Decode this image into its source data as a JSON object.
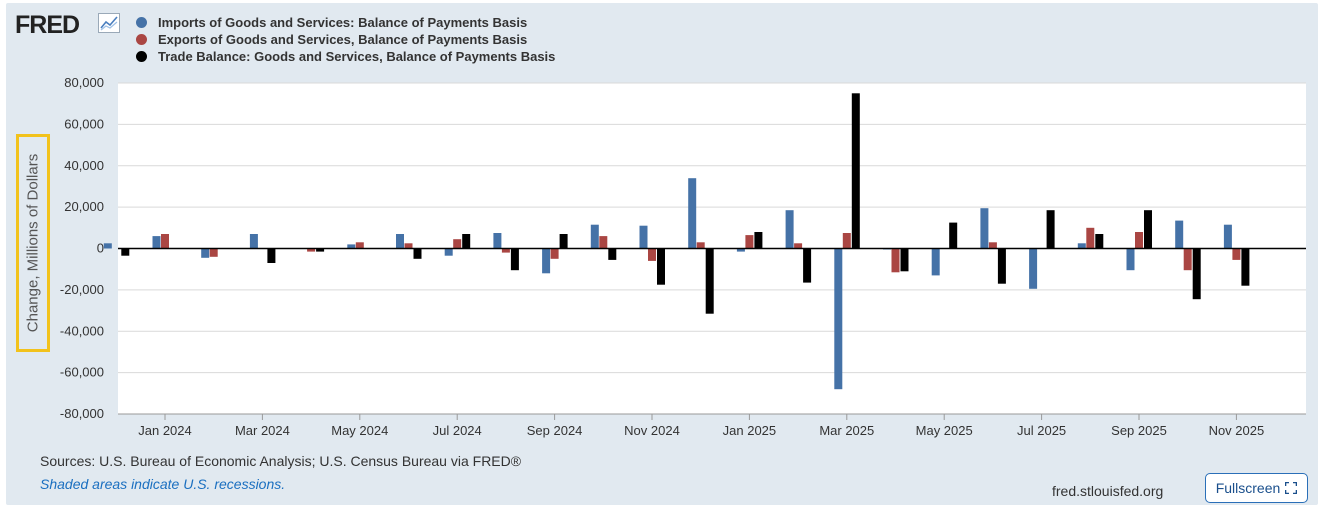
{
  "header": {
    "logo_text": "FRED",
    "logo_icon": "line-chart-icon"
  },
  "legend": [
    {
      "label": "Imports of Goods and Services: Balance of Payments Basis",
      "color": "#4572a7"
    },
    {
      "label": "Exports of Goods and Services, Balance of Payments Basis",
      "color": "#aa4643"
    },
    {
      "label": "Trade Balance: Goods and Services, Balance of Payments Basis",
      "color": "#000000"
    }
  ],
  "footer": {
    "sources": "Sources: U.S. Bureau of Economic Analysis; U.S. Census Bureau via FRED®",
    "shaded_note": "Shaded areas indicate U.S. recessions.",
    "site": "fred.stlouisfed.org",
    "fullscreen_label": "Fullscreen",
    "fullscreen_icon": "expand-icon"
  },
  "chart_data": {
    "type": "bar",
    "ylabel": "Change, Millions of Dollars",
    "ylim": [
      -80000,
      80000
    ],
    "yticks": [
      80000,
      60000,
      40000,
      20000,
      0,
      -20000,
      -40000,
      -60000,
      -80000
    ],
    "ytick_labels": [
      "80,000",
      "60,000",
      "40,000",
      "20,000",
      "0",
      "-20,000",
      "-40,000",
      "-60,000",
      "-80,000"
    ],
    "grid": true,
    "categories": [
      "Dec 2023",
      "Jan 2024",
      "Feb 2024",
      "Mar 2024",
      "Apr 2024",
      "May 2024",
      "Jun 2024",
      "Jul 2024",
      "Aug 2024",
      "Sep 2024",
      "Oct 2024",
      "Nov 2024",
      "Dec 2024",
      "Jan 2025",
      "Feb 2025",
      "Mar 2025",
      "Apr 2025",
      "May 2025",
      "Jun 2025",
      "Jul 2025",
      "Aug 2025",
      "Sep 2025",
      "Oct 2025",
      "Nov 2025"
    ],
    "x_tick_labels": [
      {
        "index": 1,
        "label": "Jan 2024"
      },
      {
        "index": 3,
        "label": "Mar 2024"
      },
      {
        "index": 5,
        "label": "May 2024"
      },
      {
        "index": 7,
        "label": "Jul 2024"
      },
      {
        "index": 9,
        "label": "Sep 2024"
      },
      {
        "index": 11,
        "label": "Nov 2024"
      },
      {
        "index": 13,
        "label": "Jan 2025"
      },
      {
        "index": 15,
        "label": "Mar 2025"
      },
      {
        "index": 17,
        "label": "May 2025"
      },
      {
        "index": 19,
        "label": "Jul 2025"
      },
      {
        "index": 21,
        "label": "Sep 2025"
      },
      {
        "index": 23,
        "label": "Nov 2025"
      }
    ],
    "series": [
      {
        "name": "Imports of Goods and Services: Balance of Payments Basis",
        "color": "#4572a7",
        "values": [
          2500,
          6000,
          -4500,
          7000,
          0,
          2000,
          7000,
          -3500,
          7500,
          -12000,
          11500,
          11000,
          34000,
          -1500,
          18500,
          -68000,
          -500,
          -13000,
          19500,
          -19500,
          2500,
          -10500,
          13500,
          11500
        ]
      },
      {
        "name": "Exports of Goods and Services, Balance of Payments Basis",
        "color": "#aa4643",
        "values": [
          0,
          7000,
          -4000,
          0,
          -1500,
          3000,
          2500,
          4500,
          -2000,
          -5000,
          6000,
          -6000,
          3000,
          6500,
          2500,
          7500,
          -11500,
          0,
          3000,
          0,
          10000,
          8000,
          -10500,
          -5500
        ]
      },
      {
        "name": "Trade Balance: Goods and Services, Balance of Payments Basis",
        "color": "#000000",
        "values": [
          -3500,
          0,
          0,
          -7000,
          -1500,
          0,
          -5000,
          7000,
          -10500,
          7000,
          -5500,
          -17500,
          -31500,
          8000,
          -16500,
          75000,
          -11000,
          12500,
          -17000,
          18500,
          7000,
          18500,
          -24500,
          -18000
        ]
      }
    ]
  }
}
